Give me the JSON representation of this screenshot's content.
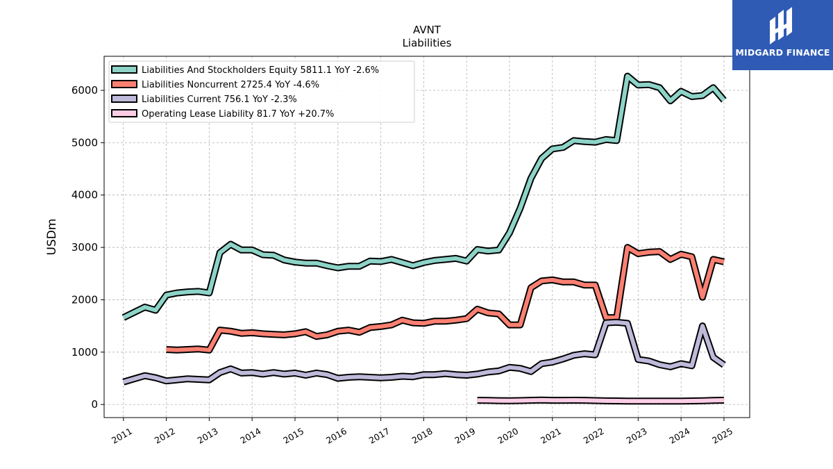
{
  "chart_data": {
    "type": "line",
    "title": "AVNT",
    "subtitle": "Liabilities",
    "ylabel": "USDm",
    "xlabel": "",
    "xlim": [
      2010.55,
      2025.6
    ],
    "ylim": [
      -250,
      6650
    ],
    "yticks": [
      0,
      1000,
      2000,
      3000,
      4000,
      5000,
      6000
    ],
    "xticks": [
      2011,
      2012,
      2013,
      2014,
      2015,
      2016,
      2017,
      2018,
      2019,
      2020,
      2021,
      2022,
      2023,
      2024,
      2025
    ],
    "grid": true,
    "legend_position": "top-left",
    "series": [
      {
        "name": "Liabilities And Stockholders Equity",
        "legend_label": "Liabilities And Stockholders Equity  5811.1 YoY -2.6%",
        "color": "#8dd3c7",
        "x": [
          2011.0,
          2011.25,
          2011.5,
          2011.75,
          2012.0,
          2012.25,
          2012.5,
          2012.75,
          2013.0,
          2013.25,
          2013.5,
          2013.75,
          2014.0,
          2014.25,
          2014.5,
          2014.75,
          2015.0,
          2015.25,
          2015.5,
          2015.75,
          2016.0,
          2016.25,
          2016.5,
          2016.75,
          2017.0,
          2017.25,
          2017.5,
          2017.75,
          2018.0,
          2018.25,
          2018.5,
          2018.75,
          2019.0,
          2019.25,
          2019.5,
          2019.75,
          2020.0,
          2020.25,
          2020.5,
          2020.75,
          2021.0,
          2021.25,
          2021.5,
          2021.75,
          2022.0,
          2022.25,
          2022.5,
          2022.75,
          2023.0,
          2023.25,
          2023.5,
          2023.75,
          2024.0,
          2024.25,
          2024.5,
          2024.75,
          2025.0
        ],
        "values": [
          1660,
          1760,
          1860,
          1800,
          2090,
          2130,
          2150,
          2160,
          2130,
          2900,
          3060,
          2950,
          2950,
          2860,
          2850,
          2760,
          2720,
          2700,
          2700,
          2650,
          2610,
          2640,
          2640,
          2740,
          2730,
          2770,
          2710,
          2650,
          2710,
          2750,
          2770,
          2790,
          2740,
          2960,
          2930,
          2950,
          3280,
          3750,
          4320,
          4700,
          4880,
          4910,
          5040,
          5020,
          5010,
          5060,
          5040,
          6270,
          6100,
          6110,
          6050,
          5800,
          5980,
          5880,
          5900,
          6050,
          5810
        ]
      },
      {
        "name": "Liabilities Noncurrent",
        "legend_label": "Liabilities Noncurrent  2725.4 YoY -4.6%",
        "color": "#fb8072",
        "x": [
          2012.0,
          2012.25,
          2012.5,
          2012.75,
          2013.0,
          2013.25,
          2013.5,
          2013.75,
          2014.0,
          2014.25,
          2014.5,
          2014.75,
          2015.0,
          2015.25,
          2015.5,
          2015.75,
          2016.0,
          2016.25,
          2016.5,
          2016.75,
          2017.0,
          2017.25,
          2017.5,
          2017.75,
          2018.0,
          2018.25,
          2018.5,
          2018.75,
          2019.0,
          2019.25,
          2019.5,
          2019.75,
          2020.0,
          2020.25,
          2020.5,
          2020.75,
          2021.0,
          2021.25,
          2021.5,
          2021.75,
          2022.0,
          2022.25,
          2022.5,
          2022.75,
          2023.0,
          2023.25,
          2023.5,
          2023.75,
          2024.0,
          2024.25,
          2024.5,
          2024.75,
          2025.0
        ],
        "values": [
          1050,
          1040,
          1050,
          1060,
          1040,
          1420,
          1400,
          1360,
          1370,
          1350,
          1340,
          1330,
          1350,
          1390,
          1300,
          1330,
          1400,
          1420,
          1380,
          1470,
          1490,
          1520,
          1610,
          1560,
          1550,
          1590,
          1590,
          1610,
          1640,
          1820,
          1750,
          1730,
          1520,
          1520,
          2230,
          2360,
          2380,
          2340,
          2340,
          2280,
          2280,
          1660,
          1660,
          3000,
          2880,
          2910,
          2920,
          2770,
          2870,
          2820,
          2050,
          2770,
          2725
        ]
      },
      {
        "name": "Liabilities Current",
        "legend_label": "Liabilities Current  756.1 YoY -2.3%",
        "color": "#bebada",
        "x": [
          2011.0,
          2011.25,
          2011.5,
          2011.75,
          2012.0,
          2012.25,
          2012.5,
          2012.75,
          2013.0,
          2013.25,
          2013.5,
          2013.75,
          2014.0,
          2014.25,
          2014.5,
          2014.75,
          2015.0,
          2015.25,
          2015.5,
          2015.75,
          2016.0,
          2016.25,
          2016.5,
          2016.75,
          2017.0,
          2017.25,
          2017.5,
          2017.75,
          2018.0,
          2018.25,
          2018.5,
          2018.75,
          2019.0,
          2019.25,
          2019.5,
          2019.75,
          2020.0,
          2020.25,
          2020.5,
          2020.75,
          2021.0,
          2021.25,
          2021.5,
          2021.75,
          2022.0,
          2022.25,
          2022.5,
          2022.75,
          2023.0,
          2023.25,
          2023.5,
          2023.75,
          2024.0,
          2024.25,
          2024.5,
          2024.75,
          2025.0
        ],
        "values": [
          430,
          490,
          550,
          510,
          450,
          470,
          490,
          480,
          470,
          610,
          680,
          600,
          610,
          580,
          610,
          580,
          600,
          560,
          600,
          570,
          500,
          520,
          530,
          520,
          510,
          520,
          540,
          530,
          570,
          570,
          590,
          570,
          560,
          580,
          620,
          640,
          710,
          690,
          630,
          780,
          810,
          870,
          940,
          970,
          950,
          1560,
          1570,
          1550,
          860,
          830,
          760,
          720,
          780,
          740,
          1500,
          900,
          756
        ]
      },
      {
        "name": "Operating Lease Liability",
        "legend_label": "Operating Lease Liability  81.7 YoY +20.7%",
        "color": "#fccde5",
        "x": [
          2019.25,
          2019.5,
          2019.75,
          2020.0,
          2020.25,
          2020.5,
          2020.75,
          2021.0,
          2021.25,
          2021.5,
          2021.75,
          2022.0,
          2022.25,
          2022.5,
          2022.75,
          2023.0,
          2023.25,
          2023.5,
          2023.75,
          2024.0,
          2024.25,
          2024.5,
          2024.75,
          2025.0
        ],
        "values": [
          80,
          78,
          74,
          72,
          75,
          80,
          84,
          80,
          80,
          82,
          80,
          75,
          70,
          68,
          66,
          64,
          64,
          65,
          65,
          66,
          68,
          72,
          78,
          82
        ]
      }
    ]
  },
  "logo": {
    "text": "MIDGARD FINANCE"
  }
}
